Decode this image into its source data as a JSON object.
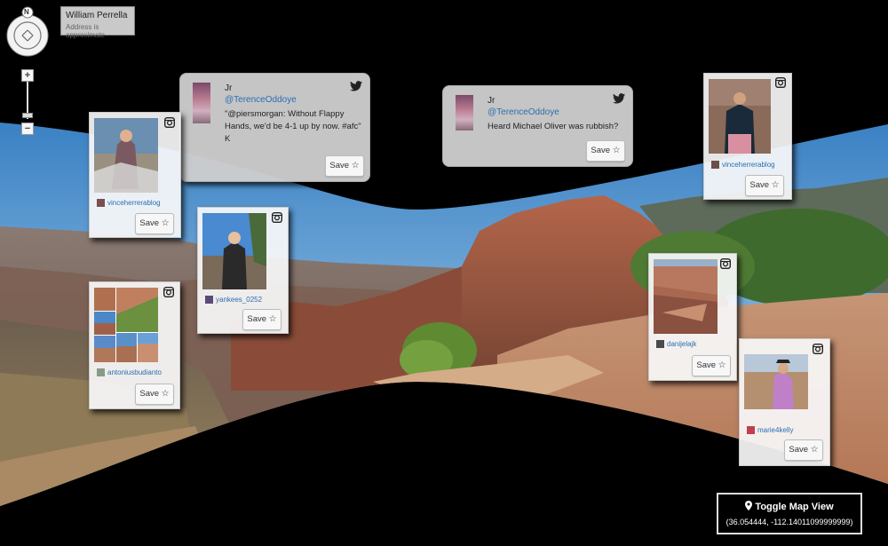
{
  "location": {
    "name": "William Perrella",
    "note": "Address is approximate"
  },
  "controls": {
    "compass_label": "N",
    "zoom_in": "+",
    "zoom_out": "−"
  },
  "tweets": [
    {
      "name": "Jr",
      "handle": "@TerenceOddoye",
      "lines": [
        "\"@piersmorgan: Without Flappy",
        "Hands, we'd be 4-1 up by now. #afc\"",
        "K"
      ],
      "save": "Save"
    },
    {
      "name": "Jr",
      "handle": "@TerenceOddoye",
      "lines": [
        "Heard Michael Oliver was rubbish?"
      ],
      "save": "Save"
    }
  ],
  "instagram": [
    {
      "user": "vinceherrerablog",
      "save": "Save"
    },
    {
      "user": "yankees_0252",
      "save": "Save"
    },
    {
      "user": "antoniusbudianto",
      "save": "Save"
    },
    {
      "user": "vinceherrerablog",
      "save": "Save"
    },
    {
      "user": "danijelajk",
      "save": "Save"
    },
    {
      "user": "marie4kelly",
      "save": "Save"
    }
  ],
  "map_toggle": {
    "label": "Toggle Map View",
    "coords": "(36.054444, -112.14011099999999)"
  },
  "colors": {
    "link": "#2a6fb0",
    "tweet_bg": "#cdcdcd",
    "card_bg": "#f8f8fa"
  },
  "icons": {
    "star": "☆",
    "pin": "map-pin-icon",
    "bird": "twitter-icon",
    "camera": "instagram-icon"
  }
}
